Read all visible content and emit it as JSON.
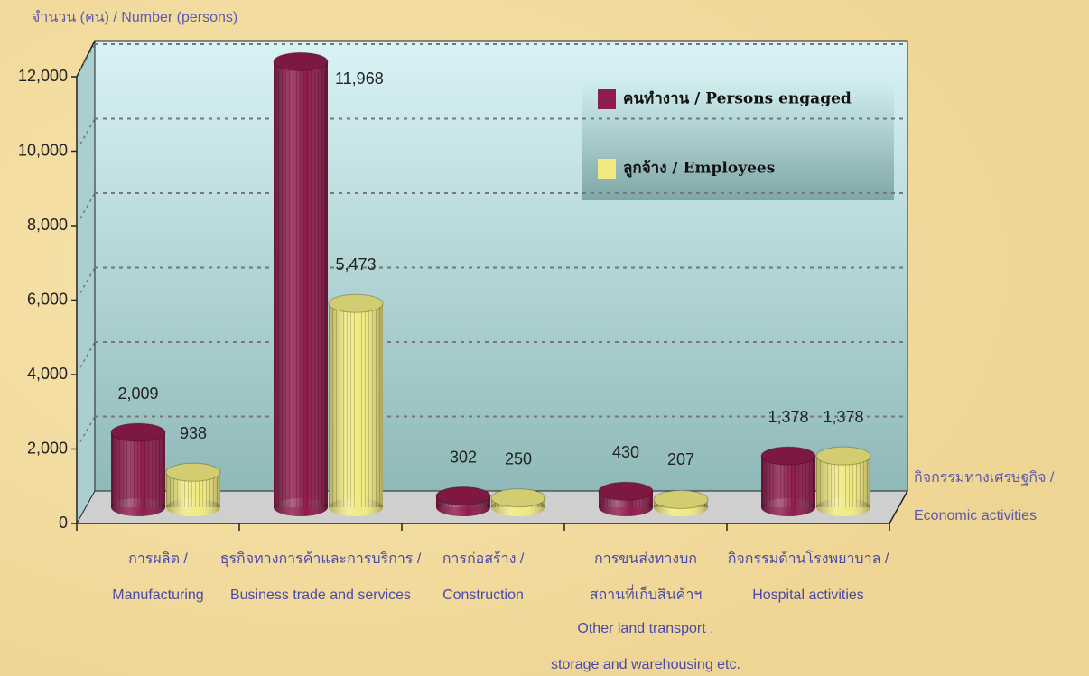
{
  "chart_data": {
    "type": "bar",
    "y_axis_label": "จำนวน (คน) / Number (persons)",
    "x_axis_label": [
      "กิจกรรมทางเศรษฐกิจ /",
      "Economic activities"
    ],
    "categories": [
      [
        "การผลิต /",
        "Manufacturing"
      ],
      [
        "ธุรกิจทางการค้าและการบริการ /",
        "Business trade and services"
      ],
      [
        "การก่อสร้าง /",
        "Construction"
      ],
      [
        "การขนส่งทางบก",
        "สถานที่เก็บสินค้าฯ",
        "Other land transport ,",
        "storage and  warehousing etc."
      ],
      [
        "กิจกรรมด้านโรงพยาบาล /",
        "Hospital activities"
      ]
    ],
    "series": [
      {
        "name": "คนทำงาน / Persons engaged",
        "color": "#8e1c4c",
        "values": [
          2009,
          11968,
          302,
          430,
          1378
        ],
        "value_labels": [
          "2,009",
          "11,968",
          "302",
          "430",
          "1,378"
        ]
      },
      {
        "name": "ลูกจ้าง / Employees",
        "color": "#f0ea80",
        "values": [
          938,
          5473,
          250,
          207,
          1378
        ],
        "value_labels": [
          "938",
          "5,473",
          "250",
          "207",
          "1,378"
        ]
      }
    ],
    "ylim": [
      0,
      12000
    ],
    "yticks": [
      0,
      {
        "value": 2000,
        "label": "2,000"
      },
      {
        "value": 4000,
        "label": "4,000"
      },
      {
        "value": 6000,
        "label": "6,000"
      },
      {
        "value": 8000,
        "label": "8,000"
      },
      {
        "value": 10000,
        "label": "10,000"
      },
      {
        "value": 12000,
        "label": "12,000"
      }
    ],
    "grid": true,
    "legend": "top-right"
  }
}
